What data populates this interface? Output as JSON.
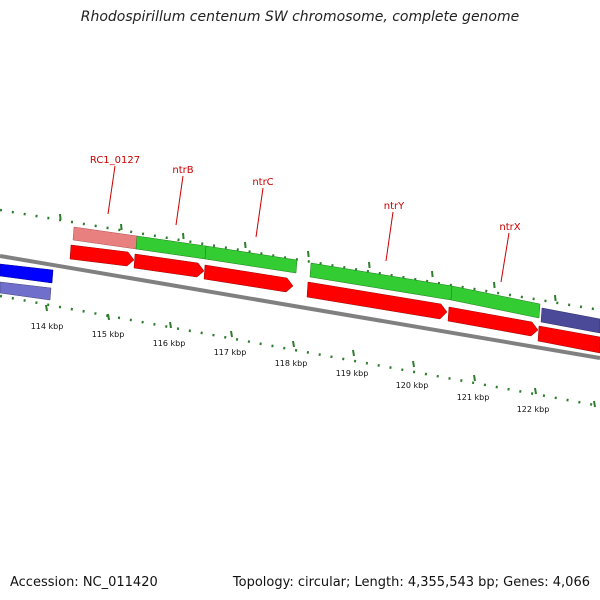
{
  "title": "Rhodospirillum centenum SW chromosome, complete genome",
  "accession": "Accession: NC_011420",
  "summary": "Topology: circular; Length: 4,355,543 bp; Genes: 4,066",
  "gene_labels": [
    "RC1_0127",
    "ntrB",
    "ntrC",
    "ntrY",
    "ntrX"
  ],
  "kbp_labels": [
    "114 kbp",
    "115 kbp",
    "116 kbp",
    "117 kbp",
    "118 kbp",
    "119 kbp",
    "120 kbp",
    "121 kbp",
    "122 kbp"
  ],
  "colors": {
    "backbone": "#808080",
    "cds_red": "#ff0000",
    "cds_green": "#33cc33",
    "cds_pink": "#e88080",
    "cds_blue": "#0000ff",
    "cds_purple": "#7070cc",
    "cds_navy": "#4a4a99",
    "tick_green": "#2e7d2e",
    "label_red": "#cc0000"
  }
}
